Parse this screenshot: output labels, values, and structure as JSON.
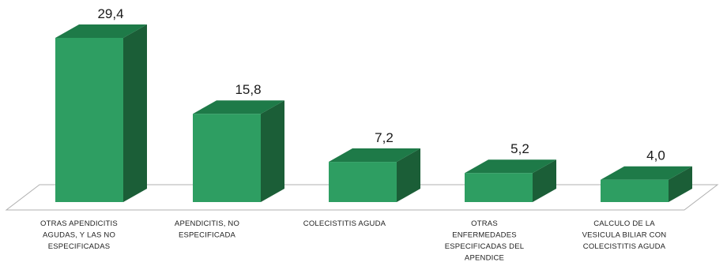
{
  "chart_data": {
    "type": "bar",
    "style": "3d-column",
    "categories": [
      "OTRAS APENDICITIS AGUDAS, Y LAS NO ESPECIFICADAS",
      "APENDICITIS, NO ESPECIFICADA",
      "COLECISTITIS AGUDA",
      "OTRAS ENFERMEDADES ESPECIFICADAS DEL APENDICE",
      "CALCULO DE LA VESICULA BILIAR CON COLECISTITIS AGUDA"
    ],
    "category_lines": [
      [
        "OTRAS APENDICITIS",
        "AGUDAS, Y LAS NO",
        "ESPECIFICADAS"
      ],
      [
        "APENDICITIS, NO",
        "ESPECIFICADA"
      ],
      [
        "COLECISTITIS AGUDA"
      ],
      [
        "OTRAS",
        "ENFERMEDADES",
        "ESPECIFICADAS DEL",
        "APENDICE"
      ],
      [
        "CALCULO DE LA",
        "VESICULA BILIAR CON",
        "COLECISTITIS AGUDA"
      ]
    ],
    "values": [
      29.4,
      15.8,
      7.2,
      5.2,
      4.0
    ],
    "value_labels": [
      "29,4",
      "15,8",
      "7,2",
      "5,2",
      "4,0"
    ],
    "title": "",
    "xlabel": "",
    "ylabel": "",
    "ylim": [
      0,
      29.4
    ],
    "grid": false,
    "legend": "none",
    "colors": {
      "front": "#2e9e62",
      "top": "#1e7a48",
      "side": "#1b5e37",
      "floor_stroke": "#b0b0b0"
    }
  }
}
